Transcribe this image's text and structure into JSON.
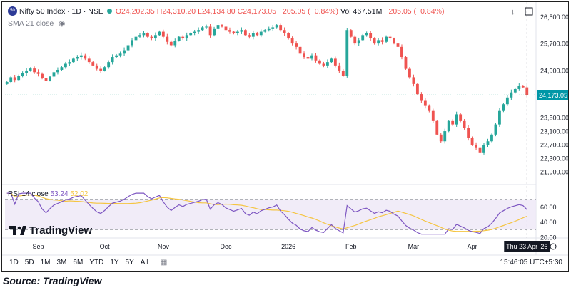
{
  "header": {
    "symbol": "Nifty 50 Index · 1D · NSE",
    "logo_text": "50",
    "open": "O24,202.35",
    "high": "H24,310.20",
    "low": "L24,134.80",
    "close": "C24,173.05",
    "change": "−205.05 (−0.84%)",
    "volume": "Vol 467.51M",
    "vol_change": "−205.05 (−0.84%)",
    "sma_label": "SMA 21 close"
  },
  "rsi_legend": {
    "label": "RSI 14 close",
    "value1": "53.24",
    "value2": "52.02"
  },
  "price_labels": {
    "last": "24,173.05"
  },
  "crosshair_date": "Thu 23 Apr '26",
  "toolbar": {
    "ranges": [
      "1D",
      "5D",
      "1M",
      "3M",
      "6M",
      "YTD",
      "1Y",
      "5Y",
      "All"
    ],
    "time": "15:46:05 UTC+5:30"
  },
  "branding": "TradingView",
  "caption": "Source: TradingView",
  "colors": {
    "up": "#26a69a",
    "down": "#ef5350",
    "rsi": "#7e57c2",
    "rsi_ma": "#f5c542",
    "last": "#089981"
  },
  "chart_data": {
    "type": "candlestick",
    "title": "Nifty 50 Index · 1D · NSE",
    "x_tick_labels": [
      "Sep",
      "Oct",
      "Nov",
      "Dec",
      "2026",
      "Feb",
      "Mar",
      "Apr"
    ],
    "y_tick_labels": [
      "26,500.00",
      "25,700.00",
      "24,900.00",
      "23,500.00",
      "23,100.00",
      "22,700.00",
      "22,300.00",
      "21,900.00"
    ],
    "price_scale": [
      {
        "label": "26,500.00",
        "value": 26500
      },
      {
        "label": "25,700.00",
        "value": 25700
      },
      {
        "label": "24,900.00",
        "value": 24900
      },
      {
        "label": "23,500.00",
        "value": 23500
      },
      {
        "label": "23,100.00",
        "value": 23100
      },
      {
        "label": "22,700.00",
        "value": 22700
      },
      {
        "label": "22,300.00",
        "value": 22300
      },
      {
        "label": "21,900.00",
        "value": 21900
      }
    ],
    "ylim": [
      21600,
      26760
    ],
    "last_price": 24173.05,
    "closes": [
      24560,
      24700,
      24620,
      24750,
      24820,
      24900,
      24960,
      24850,
      24800,
      24680,
      24600,
      24720,
      24850,
      24920,
      25000,
      25100,
      25150,
      25250,
      25300,
      25350,
      25250,
      25150,
      25050,
      24950,
      24900,
      25000,
      25150,
      25300,
      25350,
      25400,
      25500,
      25650,
      25800,
      25900,
      25950,
      26000,
      25900,
      25850,
      25950,
      26050,
      25900,
      25750,
      25650,
      25780,
      25900,
      25850,
      25950,
      26000,
      26050,
      26100,
      26180,
      26200,
      25950,
      26150,
      26250,
      26200,
      26100,
      26050,
      26000,
      26050,
      26100,
      25950,
      25900,
      26000,
      25950,
      26050,
      26100,
      26150,
      26180,
      26250,
      26100,
      26000,
      25850,
      25700,
      25600,
      25400,
      25300,
      25250,
      25350,
      25200,
      25100,
      25050,
      25150,
      25250,
      25050,
      24900,
      24750,
      26100,
      25900,
      25700,
      25800,
      25950,
      26000,
      25850,
      25700,
      25800,
      25750,
      25900,
      25850,
      25700,
      25600,
      25300,
      24950,
      24700,
      24500,
      24200,
      24000,
      23850,
      23700,
      23400,
      23000,
      22800,
      23100,
      23400,
      23300,
      23600,
      23400,
      23200,
      22900,
      22700,
      22600,
      22450,
      22700,
      22800,
      23000,
      23300,
      23700,
      23900,
      24100,
      24250,
      24350,
      24450,
      24400,
      24173
    ],
    "rsi": {
      "ylim": [
        20,
        80
      ],
      "levels": [
        30,
        70
      ],
      "tick_labels": [
        "60.00",
        "40.00",
        "20.00"
      ],
      "last": 53.24,
      "ma_last": 52.02
    }
  }
}
